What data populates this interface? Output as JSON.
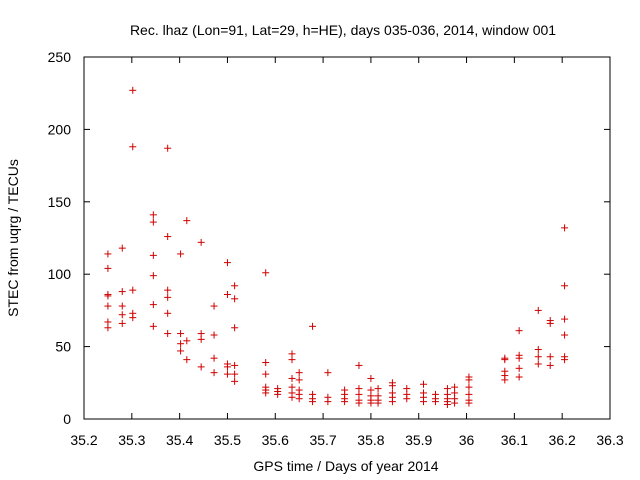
{
  "chart_data": {
    "type": "scatter",
    "title": "Rec. lhaz (Lon=91, Lat=29, h=HE), days 035-036, 2014, window 001",
    "xlabel": "GPS time / Days of year 2014",
    "ylabel": "STEC from uqrg / TECUs",
    "xlim": [
      35.2,
      36.3
    ],
    "ylim": [
      0,
      250
    ],
    "xticks": [
      35.2,
      35.3,
      35.4,
      35.5,
      35.6,
      35.7,
      35.8,
      35.9,
      36,
      36.1,
      36.2,
      36.3
    ],
    "xtick_labels": [
      "35.2",
      "35.3",
      "35.4",
      "35.5",
      "35.6",
      "35.7",
      "35.8",
      "35.9",
      "36",
      "36.1",
      "36.2",
      "36.3"
    ],
    "yticks": [
      0,
      50,
      100,
      150,
      200,
      250
    ],
    "ytick_labels": [
      "0",
      "50",
      "100",
      "150",
      "200",
      "250"
    ],
    "grid": false,
    "legend": "none",
    "marker": "plus",
    "color": "#d00000",
    "series": [
      {
        "points": [
          [
            35.25,
            114
          ],
          [
            35.25,
            104
          ],
          [
            35.25,
            86
          ],
          [
            35.25,
            85
          ],
          [
            35.25,
            78
          ],
          [
            35.25,
            67
          ],
          [
            35.25,
            63
          ],
          [
            35.28,
            118
          ],
          [
            35.28,
            88
          ],
          [
            35.28,
            78
          ],
          [
            35.28,
            72
          ],
          [
            35.28,
            66
          ],
          [
            35.302,
            227
          ],
          [
            35.302,
            188
          ],
          [
            35.302,
            89
          ],
          [
            35.302,
            73
          ],
          [
            35.302,
            70
          ],
          [
            35.345,
            141
          ],
          [
            35.345,
            136
          ],
          [
            35.345,
            113
          ],
          [
            35.345,
            99
          ],
          [
            35.345,
            79
          ],
          [
            35.345,
            64
          ],
          [
            35.375,
            187
          ],
          [
            35.375,
            126
          ],
          [
            35.375,
            89
          ],
          [
            35.375,
            84
          ],
          [
            35.375,
            73
          ],
          [
            35.375,
            59
          ],
          [
            35.402,
            114
          ],
          [
            35.402,
            59
          ],
          [
            35.402,
            52
          ],
          [
            35.402,
            47
          ],
          [
            35.415,
            137
          ],
          [
            35.415,
            54
          ],
          [
            35.415,
            41
          ],
          [
            35.445,
            122
          ],
          [
            35.445,
            59
          ],
          [
            35.445,
            55
          ],
          [
            35.445,
            36
          ],
          [
            35.472,
            78
          ],
          [
            35.472,
            58
          ],
          [
            35.472,
            42
          ],
          [
            35.472,
            32
          ],
          [
            35.5,
            108
          ],
          [
            35.5,
            86
          ],
          [
            35.5,
            38
          ],
          [
            35.5,
            36
          ],
          [
            35.5,
            31
          ],
          [
            35.515,
            92
          ],
          [
            35.515,
            83
          ],
          [
            35.515,
            63
          ],
          [
            35.515,
            37
          ],
          [
            35.515,
            31
          ],
          [
            35.515,
            26
          ],
          [
            35.58,
            101
          ],
          [
            35.58,
            39
          ],
          [
            35.58,
            31
          ],
          [
            35.58,
            22
          ],
          [
            35.58,
            20
          ],
          [
            35.58,
            18
          ],
          [
            35.605,
            21
          ],
          [
            35.605,
            19
          ],
          [
            35.605,
            17
          ],
          [
            35.635,
            45
          ],
          [
            35.635,
            41
          ],
          [
            35.635,
            28
          ],
          [
            35.635,
            22
          ],
          [
            35.635,
            18
          ],
          [
            35.635,
            15
          ],
          [
            35.65,
            32
          ],
          [
            35.65,
            27
          ],
          [
            35.65,
            20
          ],
          [
            35.65,
            17
          ],
          [
            35.65,
            14
          ],
          [
            35.678,
            64
          ],
          [
            35.678,
            17
          ],
          [
            35.678,
            14
          ],
          [
            35.678,
            12
          ],
          [
            35.71,
            32
          ],
          [
            35.71,
            15
          ],
          [
            35.71,
            12
          ],
          [
            35.745,
            20
          ],
          [
            35.745,
            17
          ],
          [
            35.745,
            14
          ],
          [
            35.745,
            12
          ],
          [
            35.775,
            37
          ],
          [
            35.775,
            21
          ],
          [
            35.775,
            17
          ],
          [
            35.775,
            13
          ],
          [
            35.775,
            11
          ],
          [
            35.8,
            28
          ],
          [
            35.8,
            20
          ],
          [
            35.8,
            16
          ],
          [
            35.8,
            13
          ],
          [
            35.8,
            11
          ],
          [
            35.815,
            21
          ],
          [
            35.815,
            16
          ],
          [
            35.815,
            13
          ],
          [
            35.815,
            11
          ],
          [
            35.845,
            25
          ],
          [
            35.845,
            23
          ],
          [
            35.845,
            18
          ],
          [
            35.845,
            15
          ],
          [
            35.845,
            12
          ],
          [
            35.875,
            21
          ],
          [
            35.875,
            17
          ],
          [
            35.875,
            14
          ],
          [
            35.91,
            24
          ],
          [
            35.91,
            18
          ],
          [
            35.91,
            15
          ],
          [
            35.91,
            12
          ],
          [
            35.935,
            17
          ],
          [
            35.935,
            14
          ],
          [
            35.935,
            12
          ],
          [
            35.96,
            21
          ],
          [
            35.96,
            17
          ],
          [
            35.96,
            14
          ],
          [
            35.96,
            12
          ],
          [
            35.96,
            10
          ],
          [
            35.975,
            22
          ],
          [
            35.975,
            18
          ],
          [
            35.975,
            14
          ],
          [
            35.975,
            11
          ],
          [
            36.005,
            29
          ],
          [
            36.005,
            27
          ],
          [
            36.005,
            22
          ],
          [
            36.005,
            17
          ],
          [
            36.005,
            13
          ],
          [
            36.005,
            11
          ],
          [
            36.08,
            42
          ],
          [
            36.08,
            41
          ],
          [
            36.08,
            33
          ],
          [
            36.08,
            30
          ],
          [
            36.08,
            27
          ],
          [
            36.11,
            61
          ],
          [
            36.11,
            44
          ],
          [
            36.11,
            42
          ],
          [
            36.11,
            35
          ],
          [
            36.11,
            29
          ],
          [
            36.15,
            75
          ],
          [
            36.15,
            48
          ],
          [
            36.15,
            43
          ],
          [
            36.15,
            38
          ],
          [
            36.175,
            68
          ],
          [
            36.175,
            66
          ],
          [
            36.175,
            43
          ],
          [
            36.175,
            37
          ],
          [
            36.205,
            132
          ],
          [
            36.205,
            92
          ],
          [
            36.205,
            69
          ],
          [
            36.205,
            58
          ],
          [
            36.205,
            43
          ],
          [
            36.205,
            41
          ]
        ]
      }
    ]
  }
}
